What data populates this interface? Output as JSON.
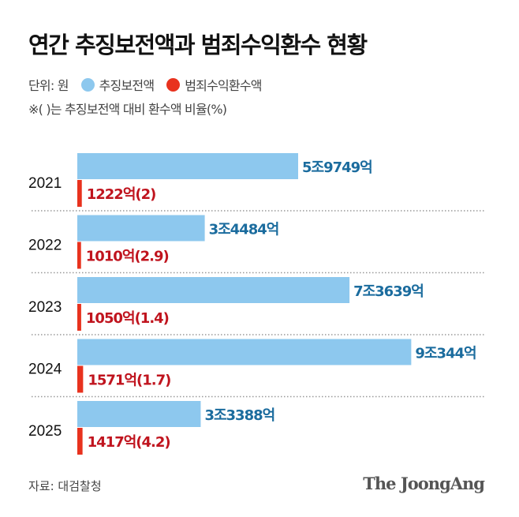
{
  "title": "연간 추징보전액과 범죄수익환수 현황",
  "legend": {
    "unit": "단위: 원",
    "series_a": "추징보전액",
    "series_b": "범죄수익환수액"
  },
  "note": "※( )는 추징보전액 대비 환수액 비율(%)",
  "source": "자료: 대검찰청",
  "logo": "The JoongAng",
  "colors": {
    "preservation": "#8DC8EE",
    "preservation_label": "#1B6C9E",
    "recovery": "#E8321E",
    "recovery_label": "#C0141E"
  },
  "chart_data": {
    "type": "bar",
    "orientation": "horizontal",
    "unit": "억 원",
    "categories": [
      "2021",
      "2022",
      "2023",
      "2024",
      "2025"
    ],
    "series": [
      {
        "name": "추징보전액",
        "values": [
          59749,
          34484,
          73639,
          90344,
          33388
        ],
        "labels": [
          "5조9749억",
          "3조4484억",
          "7조3639억",
          "9조344억",
          "3조3388억"
        ]
      },
      {
        "name": "범죄수익환수액",
        "values": [
          1222,
          1010,
          1050,
          1571,
          1417
        ],
        "ratios": [
          2,
          2.9,
          1.4,
          1.7,
          4.2
        ],
        "labels": [
          "1222억(2)",
          "1010억(2.9)",
          "1050억(1.4)",
          "1571억(1.7)",
          "1417억(4.2)"
        ]
      }
    ]
  }
}
